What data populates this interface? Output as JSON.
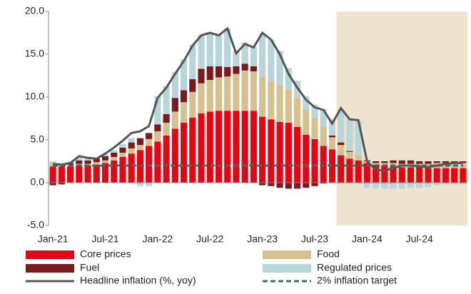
{
  "chart_data": {
    "type": "stacked_bar_line",
    "categories": [
      "Jan-21",
      null,
      null,
      null,
      null,
      null,
      "Jul-21",
      null,
      null,
      null,
      null,
      null,
      "Jan-22",
      null,
      null,
      null,
      null,
      null,
      "Jul-22",
      null,
      null,
      null,
      null,
      null,
      "Jan-23",
      null,
      null,
      null,
      null,
      null,
      "Jul-23",
      null,
      null,
      null,
      null,
      null,
      "Jan-24",
      null,
      null,
      null,
      null,
      null,
      "Jul-24",
      null,
      null,
      null,
      null,
      null
    ],
    "ylim": [
      -5,
      20
    ],
    "yticks": [
      {
        "value": -5,
        "label": "-5.0"
      },
      {
        "value": 0,
        "label": "0.0"
      },
      {
        "value": 5,
        "label": "5.0"
      },
      {
        "value": 10,
        "label": "10.0"
      },
      {
        "value": 15,
        "label": "15.0"
      },
      {
        "value": 20,
        "label": "20.0"
      }
    ],
    "grid": false,
    "shaded_region": {
      "from": 33,
      "color": "#ede3cf"
    },
    "series": [
      {
        "name": "Core prices",
        "kind": "bar",
        "color": "#e30613",
        "values": [
          1.9,
          1.9,
          1.9,
          2.0,
          2.0,
          2.1,
          2.3,
          2.6,
          3.0,
          3.4,
          3.8,
          4.3,
          4.8,
          5.5,
          6.3,
          7.0,
          7.6,
          8.1,
          8.3,
          8.4,
          8.4,
          8.4,
          8.4,
          8.4,
          7.7,
          7.4,
          7.1,
          7.0,
          6.5,
          5.6,
          5.1,
          4.3,
          3.9,
          3.2,
          2.8,
          2.6,
          2.3,
          2.1,
          2.0,
          1.9,
          1.8,
          1.8,
          1.8,
          1.7,
          1.7,
          1.7,
          1.7,
          1.7
        ]
      },
      {
        "name": "Food",
        "kind": "bar",
        "color": "#d6c08f",
        "values": [
          0.3,
          0.2,
          0.2,
          0.2,
          0.2,
          0.3,
          0.3,
          0.4,
          0.5,
          0.6,
          0.6,
          0.8,
          1.2,
          1.5,
          2.0,
          2.4,
          3.0,
          3.5,
          3.7,
          3.9,
          4.0,
          4.3,
          4.7,
          4.6,
          4.7,
          4.5,
          4.3,
          3.9,
          3.4,
          2.9,
          2.5,
          2.2,
          1.4,
          1.2,
          0.8,
          0.6,
          0.2,
          0.2,
          0.3,
          0.4,
          0.4,
          0.4,
          0.4,
          0.5,
          0.6,
          0.6,
          0.6,
          0.6
        ]
      },
      {
        "name": "Fuel",
        "kind": "bar",
        "color": "#7b1a1e",
        "values": [
          -0.3,
          -0.2,
          0.2,
          0.4,
          0.4,
          0.4,
          0.5,
          0.5,
          0.6,
          0.7,
          0.8,
          0.7,
          0.8,
          1.0,
          1.6,
          1.4,
          1.5,
          1.7,
          1.6,
          1.3,
          1.1,
          0.9,
          0.8,
          0.6,
          -0.3,
          -0.4,
          -0.6,
          -0.7,
          -0.7,
          -0.6,
          -0.4,
          -0.1,
          0.2,
          0.3,
          0.1,
          0.0,
          0.1,
          0.2,
          0.2,
          0.3,
          0.4,
          0.4,
          0.3,
          0.3,
          0.2,
          0.2,
          0.2,
          0.2
        ]
      },
      {
        "name": "Regulated prices",
        "kind": "bar",
        "color": "#b7d5da",
        "values": [
          0.3,
          0.2,
          0.1,
          0.3,
          0.2,
          0.1,
          0.2,
          0.3,
          0.4,
          0.5,
          -0.4,
          -0.4,
          3.3,
          3.3,
          3.0,
          3.6,
          4.0,
          4.0,
          3.9,
          3.7,
          4.5,
          1.8,
          2.5,
          2.3,
          5.0,
          4.8,
          4.0,
          2.5,
          2.0,
          1.6,
          1.5,
          2.1,
          1.9,
          3.8,
          3.6,
          4.0,
          -0.6,
          -0.7,
          -0.7,
          -0.7,
          -0.7,
          -0.6,
          -0.6,
          -0.5,
          -0.3,
          -0.2,
          -0.2,
          -0.2
        ]
      },
      {
        "name": "Headline inflation (%, yoy)",
        "kind": "line",
        "color": "#555555",
        "values": [
          2.2,
          2.1,
          2.3,
          3.1,
          2.9,
          2.8,
          3.4,
          4.1,
          4.9,
          5.8,
          6.0,
          6.6,
          9.9,
          11.1,
          12.7,
          14.2,
          16.0,
          17.2,
          17.5,
          17.2,
          18.0,
          15.1,
          16.2,
          15.8,
          17.5,
          16.7,
          15.0,
          12.7,
          11.1,
          9.7,
          8.8,
          8.5,
          6.9,
          8.7,
          7.4,
          7.3,
          2.5,
          1.5,
          1.4,
          1.7,
          2.0,
          2.0,
          1.9,
          1.8,
          2.0,
          2.2,
          2.3,
          2.3
        ]
      },
      {
        "name": "2% inflation target",
        "kind": "dashed",
        "color": "#3b6e6e",
        "values": [
          2,
          2,
          2,
          2,
          2,
          2,
          2,
          2,
          2,
          2,
          2,
          2,
          2,
          2,
          2,
          2,
          2,
          2,
          2,
          2,
          2,
          2,
          2,
          2,
          2,
          2,
          2,
          2,
          2,
          2,
          2,
          2,
          2,
          2,
          2,
          2,
          2,
          2,
          2,
          2,
          2,
          2,
          2,
          2,
          2,
          2,
          2,
          2
        ]
      }
    ]
  }
}
